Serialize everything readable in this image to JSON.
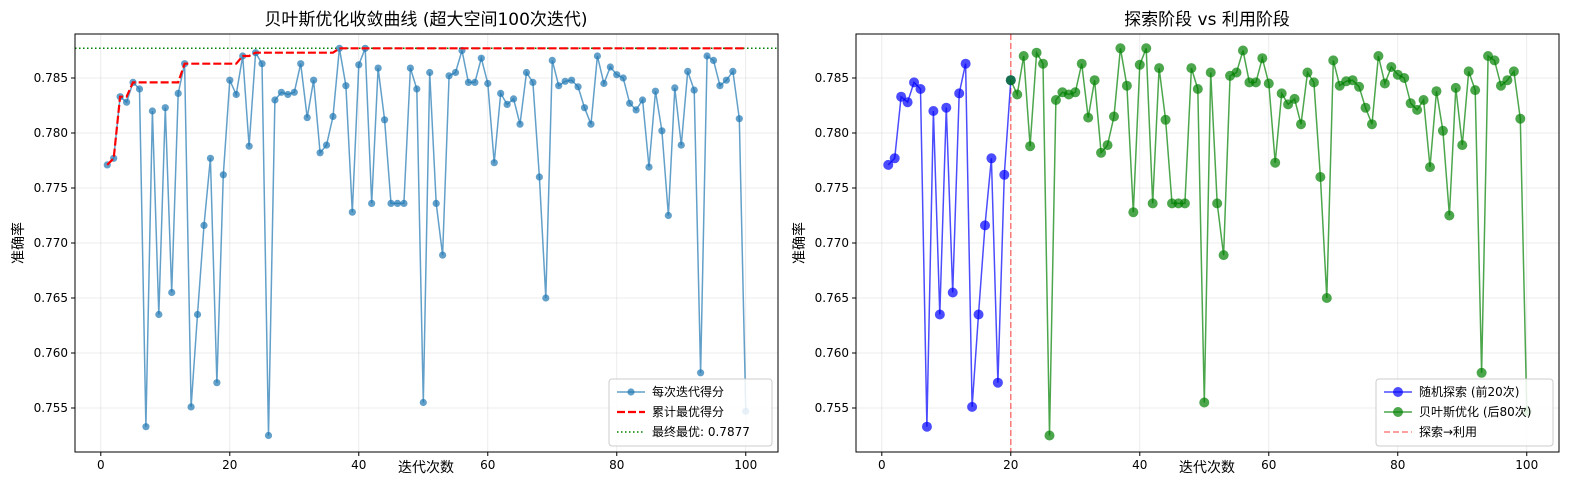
{
  "chart_data": [
    {
      "type": "line",
      "title": "贝叶斯优化收敛曲线 (超大空间100次迭代)",
      "xlabel": "迭代次数",
      "ylabel": "准确率",
      "xlim": [
        -4,
        105
      ],
      "ylim": [
        0.751,
        0.789
      ],
      "xticks": [
        0,
        20,
        40,
        60,
        80,
        100
      ],
      "yticks": [
        0.755,
        0.76,
        0.765,
        0.77,
        0.775,
        0.78,
        0.785
      ],
      "ytick_labels": [
        "0.755",
        "0.760",
        "0.765",
        "0.770",
        "0.775",
        "0.780",
        "0.785"
      ],
      "grid": true,
      "legend_position": "lower-right",
      "x": [
        1,
        2,
        3,
        4,
        5,
        6,
        7,
        8,
        9,
        10,
        11,
        12,
        13,
        14,
        15,
        16,
        17,
        18,
        19,
        20,
        21,
        22,
        23,
        24,
        25,
        26,
        27,
        28,
        29,
        30,
        31,
        32,
        33,
        34,
        35,
        36,
        37,
        38,
        39,
        40,
        41,
        42,
        43,
        44,
        45,
        46,
        47,
        48,
        49,
        50,
        51,
        52,
        53,
        54,
        55,
        56,
        57,
        58,
        59,
        60,
        61,
        62,
        63,
        64,
        65,
        66,
        67,
        68,
        69,
        70,
        71,
        72,
        73,
        74,
        75,
        76,
        77,
        78,
        79,
        80,
        81,
        82,
        83,
        84,
        85,
        86,
        87,
        88,
        89,
        90,
        91,
        92,
        93,
        94,
        95,
        96,
        97,
        98,
        99,
        100
      ],
      "series": [
        {
          "name": "每次迭代得分",
          "color": "#1f77b4",
          "style": "line-marker",
          "values": [
            0.7771,
            0.7777,
            0.7833,
            0.7828,
            0.7846,
            0.784,
            0.7533,
            0.782,
            0.7635,
            0.7823,
            0.7655,
            0.7836,
            0.7863,
            0.7551,
            0.7635,
            0.7716,
            0.7777,
            0.7573,
            0.7762,
            0.7848,
            0.7835,
            0.787,
            0.7788,
            0.7873,
            0.7863,
            0.7525,
            0.783,
            0.7837,
            0.7835,
            0.7837,
            0.7863,
            0.7814,
            0.7848,
            0.7782,
            0.7789,
            0.7815,
            0.7877,
            0.7843,
            0.7728,
            0.7862,
            0.7877,
            0.7736,
            0.7859,
            0.7812,
            0.7736,
            0.7736,
            0.7736,
            0.7859,
            0.784,
            0.7555,
            0.7855,
            0.7736,
            0.7689,
            0.7852,
            0.7855,
            0.7875,
            0.7846,
            0.7846,
            0.7868,
            0.7845,
            0.7773,
            0.7836,
            0.7826,
            0.7831,
            0.7808,
            0.7855,
            0.7846,
            0.776,
            0.765,
            0.7866,
            0.7843,
            0.7847,
            0.7848,
            0.7842,
            0.7823,
            0.7808,
            0.787,
            0.7845,
            0.786,
            0.7853,
            0.785,
            0.7827,
            0.7821,
            0.783,
            0.7769,
            0.7838,
            0.7802,
            0.7725,
            0.7841,
            0.7789,
            0.7856,
            0.7839,
            0.7582,
            0.787,
            0.7866,
            0.7843,
            0.7848,
            0.7856,
            0.7813,
            0.7547
          ]
        },
        {
          "name": "累计最优得分",
          "color": "#ff0000",
          "style": "dashed",
          "values": [
            0.7771,
            0.7777,
            0.7833,
            0.7833,
            0.7846,
            0.7846,
            0.7846,
            0.7846,
            0.7846,
            0.7846,
            0.7846,
            0.7846,
            0.7863,
            0.7863,
            0.7863,
            0.7863,
            0.7863,
            0.7863,
            0.7863,
            0.7863,
            0.7863,
            0.787,
            0.787,
            0.7873,
            0.7873,
            0.7873,
            0.7873,
            0.7873,
            0.7873,
            0.7873,
            0.7873,
            0.7873,
            0.7873,
            0.7873,
            0.7873,
            0.7873,
            0.7877,
            0.7877,
            0.7877,
            0.7877,
            0.7877,
            0.7877,
            0.7877,
            0.7877,
            0.7877,
            0.7877,
            0.7877,
            0.7877,
            0.7877,
            0.7877,
            0.7877,
            0.7877,
            0.7877,
            0.7877,
            0.7877,
            0.7877,
            0.7877,
            0.7877,
            0.7877,
            0.7877,
            0.7877,
            0.7877,
            0.7877,
            0.7877,
            0.7877,
            0.7877,
            0.7877,
            0.7877,
            0.7877,
            0.7877,
            0.7877,
            0.7877,
            0.7877,
            0.7877,
            0.7877,
            0.7877,
            0.7877,
            0.7877,
            0.7877,
            0.7877,
            0.7877,
            0.7877,
            0.7877,
            0.7877,
            0.7877,
            0.7877,
            0.7877,
            0.7877,
            0.7877,
            0.7877,
            0.7877,
            0.7877,
            0.7877,
            0.7877,
            0.7877,
            0.7877,
            0.7877,
            0.7877,
            0.7877,
            0.7877
          ]
        },
        {
          "name": "最终最优: 0.7877",
          "color": "#008000",
          "style": "dotted-hline",
          "value": 0.7877
        }
      ]
    },
    {
      "type": "line",
      "title": "探索阶段 vs 利用阶段",
      "xlabel": "迭代次数",
      "ylabel": "准确率",
      "xlim": [
        -4,
        105
      ],
      "ylim": [
        0.751,
        0.789
      ],
      "xticks": [
        0,
        20,
        40,
        60,
        80,
        100
      ],
      "yticks": [
        0.755,
        0.76,
        0.765,
        0.77,
        0.775,
        0.78,
        0.785
      ],
      "ytick_labels": [
        "0.755",
        "0.760",
        "0.765",
        "0.770",
        "0.775",
        "0.780",
        "0.785"
      ],
      "grid": true,
      "legend_position": "lower-right",
      "series": [
        {
          "name": "随机探索 (前20次)",
          "color": "#0000ff",
          "style": "line-marker",
          "x_start": 1,
          "x_end": 20
        },
        {
          "name": "贝叶斯优化 (后80次)",
          "color": "#008000",
          "style": "line-marker",
          "x_start": 20,
          "x_end": 100
        },
        {
          "name": "探索→利用",
          "color": "#ff0000",
          "style": "dashed-vline",
          "value": 20
        }
      ]
    }
  ]
}
